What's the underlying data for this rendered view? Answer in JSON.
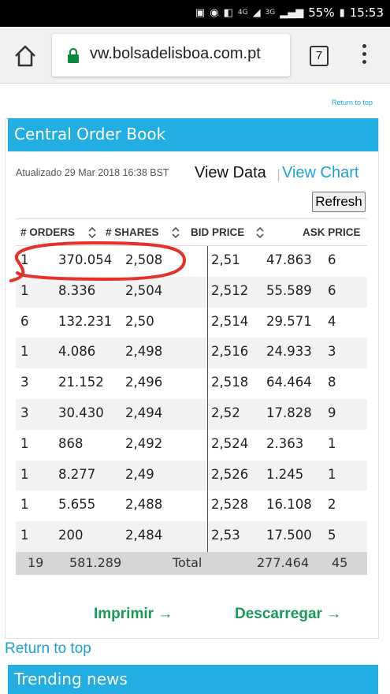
{
  "status_bar": {
    "battery": "55%",
    "time": "15:53",
    "network_4g": "4G",
    "network_3g": "3G"
  },
  "browser": {
    "url": "vw.bolsadelisboa.com.pt",
    "tab_count": "7"
  },
  "top_links": {
    "return_small": "Return to top"
  },
  "panel": {
    "title": "Central Order Book",
    "updated": "Atualizado 29 Mar 2018 16:38 BST",
    "view_data": "View Data",
    "separator": "|",
    "view_chart": "View Chart",
    "refresh": "Refresh"
  },
  "table": {
    "headers": {
      "orders": "# ORDERS",
      "shares": "# SHARES",
      "bid_price": "BID PRICE",
      "ask_price": "ASK PRICE"
    },
    "rows": [
      {
        "orders": "1",
        "shares": "370.054",
        "bid": "2,508",
        "ask": "2,51",
        "ask_shares": "47.863",
        "ask_orders": "6"
      },
      {
        "orders": "1",
        "shares": "8.336",
        "bid": "2,504",
        "ask": "2,512",
        "ask_shares": "55.589",
        "ask_orders": "6"
      },
      {
        "orders": "6",
        "shares": "132.231",
        "bid": "2,50",
        "ask": "2,514",
        "ask_shares": "29.571",
        "ask_orders": "4"
      },
      {
        "orders": "1",
        "shares": "4.086",
        "bid": "2,498",
        "ask": "2,516",
        "ask_shares": "24.933",
        "ask_orders": "3"
      },
      {
        "orders": "3",
        "shares": "21.152",
        "bid": "2,496",
        "ask": "2,518",
        "ask_shares": "64.464",
        "ask_orders": "8"
      },
      {
        "orders": "3",
        "shares": "30.430",
        "bid": "2,494",
        "ask": "2,52",
        "ask_shares": "17.828",
        "ask_orders": "9"
      },
      {
        "orders": "1",
        "shares": "868",
        "bid": "2,492",
        "ask": "2,524",
        "ask_shares": "2.363",
        "ask_orders": "1"
      },
      {
        "orders": "1",
        "shares": "8.277",
        "bid": "2,49",
        "ask": "2,526",
        "ask_shares": "1.245",
        "ask_orders": "1"
      },
      {
        "orders": "1",
        "shares": "5.655",
        "bid": "2,488",
        "ask": "2,528",
        "ask_shares": "16.108",
        "ask_orders": "2"
      },
      {
        "orders": "1",
        "shares": "200",
        "bid": "2,484",
        "ask": "2,53",
        "ask_shares": "17.500",
        "ask_orders": "5"
      }
    ],
    "total": {
      "orders": "19",
      "shares": "581.289",
      "label": "Total",
      "ask_shares": "277.464",
      "ask_orders": "45"
    }
  },
  "links": {
    "print": "Imprimir",
    "download": "Descarregar",
    "return_top": "Return to top"
  },
  "trending": {
    "title": "Trending news"
  },
  "colors": {
    "accent_blue": "#22aee2",
    "link_green": "#1a9a5a",
    "link_blue": "#1ea0d8",
    "annotation_red": "#e8302a"
  }
}
